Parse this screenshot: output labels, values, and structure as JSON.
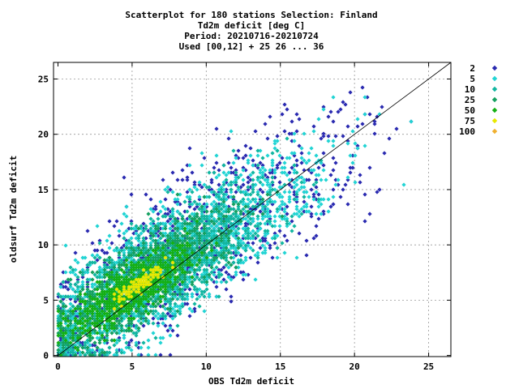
{
  "chart_data": {
    "type": "scatter",
    "title_lines": [
      "Scatterplot for  180 stations Selection: Finland",
      "Td2m deficit [deg C]",
      "Period: 20210716-20210724",
      "Used [00,12] + 25 26 ... 36"
    ],
    "xlabel": "OBS Td2m deficit",
    "ylabel": "oldsurf Td2m deficit",
    "xlim": [
      -0.3,
      26.5
    ],
    "ylim": [
      -0.1,
      26.5
    ],
    "x_ticks": [
      0,
      5,
      10,
      15,
      20,
      25
    ],
    "y_ticks": [
      0,
      5,
      10,
      15,
      20,
      25
    ],
    "grid": true,
    "diagonal_line": true,
    "legend_placement": "right",
    "legend": [
      {
        "label": "2",
        "color": "#2a2ab0"
      },
      {
        "label": "5",
        "color": "#22d4d4"
      },
      {
        "label": "10",
        "color": "#12b6a0"
      },
      {
        "label": "25",
        "color": "#15a060"
      },
      {
        "label": "50",
        "color": "#14b014"
      },
      {
        "label": "75",
        "color": "#e8e800"
      },
      {
        "label": "100",
        "color": "#f0b030"
      }
    ],
    "density_bands": [
      {
        "level": "75",
        "center_x": 5.5,
        "center_y": 6.5,
        "spread_along": 2.2,
        "spread_across": 0.5
      },
      {
        "level": "50",
        "center_x": 5.0,
        "center_y": 6.0,
        "spread_along": 5.0,
        "spread_across": 1.6
      },
      {
        "level": "25",
        "center_x": 6.0,
        "center_y": 7.0,
        "spread_along": 7.5,
        "spread_across": 2.4
      },
      {
        "level": "10",
        "center_x": 7.0,
        "center_y": 8.0,
        "spread_along": 9.5,
        "spread_across": 3.2
      },
      {
        "level": "5",
        "center_x": 8.0,
        "center_y": 9.0,
        "spread_along": 12.0,
        "spread_across": 3.8
      },
      {
        "level": "2",
        "center_x": 9.0,
        "center_y": 10.0,
        "spread_along": 14.5,
        "spread_across": 4.6
      }
    ]
  }
}
